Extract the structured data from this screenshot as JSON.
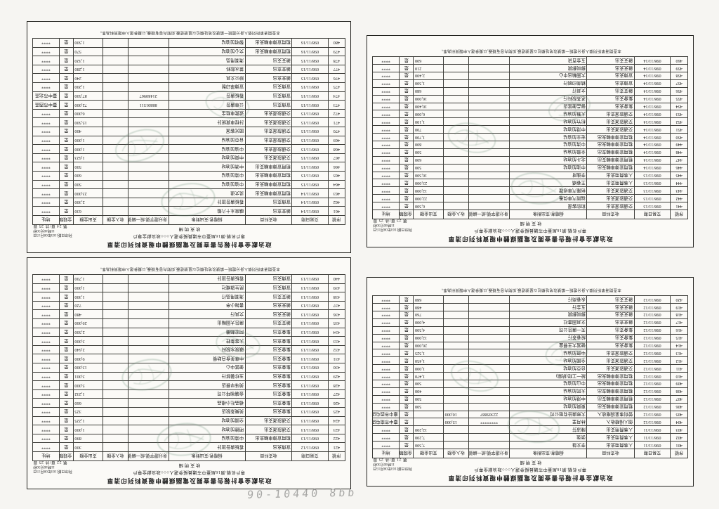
{
  "shared": {
    "title": "政治獻金會計報告書查閱及電腦媒體申報資料列印清單",
    "subtitle": "專戶名稱:第16屆臺中市議員擬參選人○○○政治獻金專戶",
    "section": "收支明細",
    "print_date": "列印日期:103年08月15日",
    "print_time": "11時40分30秒",
    "disclaimer": "本查閱清單所列個人身分證統一編號及地址欄位以星號遮蔽,如對內容有疑義,以擬參選人申報資料為準。",
    "money_flag": "是",
    "masked": "****"
  },
  "table": {
    "headers": [
      "序號",
      "交易日期",
      "收支科目",
      "捐贈者/支出對象",
      "身分證字號/統一編號",
      "收入金額",
      "支出金額",
      "金錢類",
      "地址"
    ],
    "col_widths": [
      "5.5%",
      "11.5%",
      "15%",
      "24.5%",
      "13%",
      "8%",
      "9.5%",
      "4.5%",
      "8.5%"
    ]
  },
  "handwritten_note": "90-10440 8bb",
  "pages": [
    {
      "id": "p-tl",
      "page_label": "第 24 頁/共 25 頁",
      "rows": [
        [
          "461",
          "098/11/14",
          "雜支支出",
          "礦泉水十六箱",
          "",
          "",
          "630",
          "是",
          "****"
        ],
        [
          "462",
          "098/11/14",
          "宣傳支出",
          "看板廣告設計",
          "",
          "",
          "2,300",
          "是",
          "****"
        ],
        [
          "463",
          "098/11/14",
          "租用宣傳車輛支出",
          "吳文達",
          "",
          "",
          "23,000",
          "是",
          "****"
        ],
        [
          "464",
          "098/11/15",
          "租用宣傳車輛支出",
          "中油加油站",
          "",
          "",
          "500",
          "是",
          "****"
        ],
        [
          "465",
          "098/11/15",
          "租用宣傳車輛支出",
          "中港加油站",
          "",
          "",
          "600",
          "是",
          "****"
        ],
        [
          "466",
          "098/11/15",
          "租用宣傳車輛支出",
          "中清加油站",
          "",
          "",
          "500",
          "是",
          "****"
        ],
        [
          "467",
          "098/11/15",
          "交通旅運支出",
          "中興加油站",
          "",
          "",
          "1,623",
          "是",
          "****"
        ],
        [
          "468",
          "098/11/15",
          "交通旅運支出",
          "中油加油站",
          "",
          "",
          "1,000",
          "是",
          "****"
        ],
        [
          "469",
          "098/11/15",
          "交通旅運支出",
          "台亞加油站",
          "",
          "",
          "1,000",
          "是",
          "****"
        ],
        [
          "470",
          "098/11/15",
          "交通旅運支出",
          "國光客運",
          "",
          "",
          "400",
          "是",
          "****"
        ],
        [
          "471",
          "098/11/15",
          "交通旅運支出",
          "計程車資統計",
          "",
          "",
          "15,500",
          "是",
          "****"
        ],
        [
          "472",
          "098/11/15",
          "交通旅運支出",
          "遊覽車租金",
          "",
          "",
          "6,000",
          "是",
          "****"
        ],
        [
          "473",
          "098/11/15",
          "宣傳支出",
          "公車廣告",
          "88801511",
          "",
          "72,000",
          "是",
          "臺中市西區"
        ],
        [
          "474",
          "098/11/15",
          "宣傳支出",
          "看板廣告",
          "21480967",
          "",
          "87,500",
          "是",
          "臺中市北區"
        ],
        [
          "475",
          "098/11/15",
          "宣傳支出",
          "宣傳單印製",
          "",
          "",
          "1,200",
          "是",
          "****"
        ],
        [
          "476",
          "098/11/15",
          "雜支支出",
          "辦公文具",
          "",
          "",
          "240",
          "是",
          "****"
        ],
        [
          "477",
          "098/11/15",
          "雜支支出",
          "茶水飲料",
          "",
          "",
          "1,280",
          "是",
          "****"
        ],
        [
          "478",
          "098/11/15",
          "雜支支出",
          "清潔用品",
          "",
          "",
          "1,320",
          "是",
          "****"
        ],
        [
          "479",
          "098/11/16",
          "租用宣傳車輛支出",
          "文心加油站",
          "",
          "",
          "570",
          "是",
          "****"
        ],
        [
          "480",
          "098/11/16",
          "租用宣傳車輛支出",
          "黎明加油站",
          "",
          "",
          "1,500",
          "是",
          "****"
        ]
      ]
    },
    {
      "id": "p-tr",
      "page_label": "第 23 頁/共 25 頁",
      "rows": [
        [
          "441",
          "098/11/13",
          "交通旅運支出",
          "和欣客運",
          "",
          "",
          "6,500",
          "是",
          "****"
        ],
        [
          "442",
          "098/11/13",
          "交通旅運支出",
          "福斯汽車保養",
          "",
          "",
          "22,000",
          "是",
          "****"
        ],
        [
          "443",
          "098/11/13",
          "交通旅運支出",
          "裕隆汽車修理",
          "",
          "",
          "12,000",
          "是",
          "****"
        ],
        [
          "444",
          "098/11/13",
          "人事費用支出",
          "王春嬌",
          "",
          "",
          "23,000",
          "是",
          "****"
        ],
        [
          "445",
          "098/11/13",
          "人事費用支出",
          "李進財",
          "",
          "",
          "10,500",
          "是",
          "****"
        ],
        [
          "446",
          "098/11/14",
          "租用宣傳車輛支出",
          "中油加油站",
          "",
          "",
          "500",
          "是",
          "****"
        ],
        [
          "447",
          "098/11/14",
          "租用宣傳車輛支出",
          "北斗加油站",
          "",
          "",
          "600",
          "是",
          "****"
        ],
        [
          "448",
          "098/11/14",
          "租用宣傳車輛支出",
          "全鋒加油站",
          "",
          "",
          "500",
          "是",
          "****"
        ],
        [
          "449",
          "098/11/14",
          "租用宣傳車輛支出",
          "中清加油站",
          "",
          "",
          "800",
          "是",
          "****"
        ],
        [
          "450",
          "098/11/14",
          "租用宣傳車輛支出",
          "宏全加油站",
          "",
          "",
          "1,700",
          "是",
          "****"
        ],
        [
          "451",
          "098/11/14",
          "交通旅運支出",
          "中港加油站",
          "",
          "",
          "700",
          "是",
          "****"
        ],
        [
          "452",
          "098/11/14",
          "交通旅運支出",
          "松竹加油站",
          "",
          "",
          "1,100",
          "是",
          "****"
        ],
        [
          "453",
          "098/11/14",
          "交通旅運支出",
          "大雅加油站",
          "",
          "",
          "6,000",
          "是",
          "****"
        ],
        [
          "454",
          "098/11/14",
          "集會支出",
          "御品便當店",
          "",
          "",
          "10,400",
          "是",
          "****"
        ],
        [
          "455",
          "098/11/14",
          "集會支出",
          "茗茶飲料行",
          "",
          "",
          "16,000",
          "是",
          "****"
        ],
        [
          "456",
          "098/11/14",
          "雜支支出",
          "文具行",
          "",
          "",
          "680",
          "是",
          "****"
        ],
        [
          "457",
          "098/11/14",
          "宣傳支出",
          "精美印刷行",
          "",
          "",
          "1,500",
          "是",
          "****"
        ],
        [
          "458",
          "098/11/14",
          "宣傳支出",
          "大圖輸出中心",
          "",
          "",
          "2,400",
          "是",
          "****"
        ],
        [
          "459",
          "098/11/14",
          "雜支支出",
          "郵局郵資",
          "",
          "",
          "210",
          "是",
          "****"
        ],
        [
          "460",
          "098/11/14",
          "雜支支出",
          "五金百貨",
          "",
          "",
          "600",
          "是",
          "****"
        ]
      ]
    },
    {
      "id": "p-bl",
      "page_label": "第 22 頁/共 25 頁",
      "rows": [
        [
          "421",
          "098/11/12",
          "宣傳支出",
          "看板廣告設計",
          "",
          "",
          "300",
          "是",
          "****"
        ],
        [
          "422",
          "098/11/13",
          "租用宣傳車輛支出",
          "中港加油站",
          "",
          "",
          "890",
          "是",
          "****"
        ],
        [
          "423",
          "098/11/13",
          "交通旅運支出",
          "明德加油站",
          "",
          "",
          "1,000",
          "是",
          "****"
        ],
        [
          "424",
          "098/11/13",
          "交通旅運支出",
          "全國加油站",
          "",
          "",
          "1,225",
          "是",
          "****"
        ],
        [
          "425",
          "098/11/13",
          "集會支出",
          "美樂茶飲店",
          "",
          "",
          "325",
          "是",
          "****"
        ],
        [
          "426",
          "098/11/13",
          "集會支出",
          "禮品社小禮品",
          "",
          "",
          "660",
          "是",
          "****"
        ],
        [
          "427",
          "098/11/13",
          "集會支出",
          "金礦咖啡公司",
          "",
          "",
          "1,232",
          "是",
          "****"
        ],
        [
          "428",
          "098/11/13",
          "集會支出",
          "美味早餐店",
          "",
          "",
          "5,000",
          "是",
          "****"
        ],
        [
          "429",
          "098/11/13",
          "集會支出",
          "玉珍馨餅行",
          "",
          "",
          "3,001",
          "是",
          "****"
        ],
        [
          "430",
          "098/11/13",
          "集會支出",
          "便當中心",
          "",
          "",
          "13,000",
          "是",
          "****"
        ],
        [
          "431",
          "098/11/13",
          "集會支出",
          "中華美食自助餐",
          "",
          "",
          "9,000",
          "是",
          "****"
        ],
        [
          "432",
          "098/11/13",
          "集會支出",
          "礦泉水飲料",
          "",
          "",
          "2,640",
          "是",
          "****"
        ],
        [
          "433",
          "098/11/13",
          "集會支出",
          "大發茶莊",
          "",
          "",
          "3,000",
          "是",
          "****"
        ],
        [
          "434",
          "098/11/13",
          "集會支出",
          "阿宏麵攤",
          "",
          "",
          "2,500",
          "是",
          "****"
        ],
        [
          "435",
          "098/11/13",
          "雜支支出",
          "廣告大圖輸出",
          "",
          "",
          "29,000",
          "是",
          "****"
        ],
        [
          "436",
          "098/11/13",
          "雜支支出",
          "文具行",
          "",
          "",
          "480",
          "是",
          "****"
        ],
        [
          "437",
          "098/11/13",
          "雜支支出",
          "書報小亭",
          "",
          "",
          "720",
          "是",
          "****"
        ],
        [
          "438",
          "098/11/13",
          "雜支支出",
          "清潔用品行",
          "",
          "",
          "1,300",
          "是",
          "****"
        ],
        [
          "439",
          "098/11/13",
          "宣傳支出",
          "民生旗幟社",
          "",
          "",
          "1,000",
          "是",
          "****"
        ],
        [
          "440",
          "098/11/13",
          "宣傳支出",
          "看板廣告設計",
          "",
          "",
          "1,700",
          "是",
          "****"
        ]
      ]
    },
    {
      "id": "p-br",
      "page_label": "第 21 頁/共 25 頁",
      "rows": [
        [
          "401",
          "098/11/11",
          "人事費用支出",
          "李文雄",
          "",
          "",
          "7,500",
          "是",
          "****"
        ],
        [
          "402",
          "098/11/11",
          "人事費用支出",
          "張強",
          "",
          "",
          "7,200",
          "是",
          "****"
        ],
        [
          "403",
          "098/11/11",
          "人事費用支出",
          "陳淑芬",
          "",
          "",
          "12,200",
          "是",
          "****"
        ],
        [
          "404",
          "098/11/12",
          "個人捐贈收入",
          "林月里",
          "********",
          "15,000",
          "",
          "是",
          "臺中市南屯區"
        ],
        [
          "405",
          "098/11/12",
          "營利事業捐贈收入",
          "大眾廣告有限公司",
          "22305887",
          "10,000",
          "",
          "是",
          "臺中市西屯區"
        ],
        [
          "406",
          "098/11/12",
          "租用宣傳車輛支出",
          "東興加油站",
          "",
          "",
          "500",
          "是",
          "****"
        ],
        [
          "407",
          "098/11/12",
          "租用宣傳車輛支出",
          "中港加油站",
          "",
          "",
          "500",
          "是",
          "****"
        ],
        [
          "408",
          "098/11/12",
          "租用宣傳車輛支出",
          "大同加油站",
          "",
          "",
          "400",
          "是",
          "****"
        ],
        [
          "409",
          "098/11/12",
          "租用宣傳車輛支出",
          "中山加油站",
          "",
          "",
          "500",
          "是",
          "****"
        ],
        [
          "410",
          "098/11/12",
          "租用宣傳車輛支出",
          "統一工程(統編)",
          "",
          "",
          "1,470",
          "是",
          "****"
        ],
        [
          "411",
          "098/11/12",
          "交通旅運支出",
          "台亞加油站",
          "",
          "",
          "1,000",
          "是",
          "****"
        ],
        [
          "412",
          "098/11/12",
          "交通旅運支出",
          "全國加油站",
          "",
          "",
          "1,450",
          "是",
          "****"
        ],
        [
          "413",
          "098/11/12",
          "交通旅運支出",
          "中興加油站",
          "",
          "",
          "1,525",
          "是",
          "****"
        ],
        [
          "414",
          "098/11/12",
          "集會支出",
          "便當大王餐盒",
          "",
          "",
          "26,000",
          "是",
          "****"
        ],
        [
          "415",
          "098/11/12",
          "集會支出",
          "統春茶行",
          "",
          "",
          "12,000",
          "是",
          "****"
        ],
        [
          "416",
          "098/11/12",
          "集會支出",
          "天一廣告公司",
          "",
          "",
          "4,500",
          "是",
          "****"
        ],
        [
          "417",
          "098/11/12",
          "雜支支出",
          "文具圖書社",
          "",
          "",
          "4,000",
          "是",
          "****"
        ],
        [
          "418",
          "098/11/12",
          "雜支支出",
          "郵局郵資",
          "",
          "",
          "760",
          "是",
          "****"
        ],
        [
          "419",
          "098/11/12",
          "雜支支出",
          "五金行",
          "",
          "",
          "480",
          "是",
          "****"
        ],
        [
          "420",
          "098/11/12",
          "雜支支出",
          "永春商行",
          "",
          "",
          "680",
          "是",
          "****"
        ]
      ]
    }
  ]
}
